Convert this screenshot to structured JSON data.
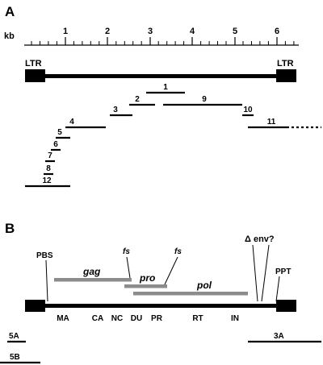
{
  "panel_a": {
    "panel_label": "A",
    "scale": {
      "unit_label": "kb",
      "ticks": [
        "1",
        "2",
        "3",
        "4",
        "5",
        "6"
      ]
    },
    "ltr_left": "LTR",
    "ltr_right": "LTR",
    "clones": [
      {
        "label": "1"
      },
      {
        "label": "2"
      },
      {
        "label": "3"
      },
      {
        "label": "9"
      },
      {
        "label": "10"
      },
      {
        "label": "4"
      },
      {
        "label": "11"
      },
      {
        "label": "5"
      },
      {
        "label": "6"
      },
      {
        "label": "7"
      },
      {
        "label": "8"
      },
      {
        "label": "12"
      }
    ]
  },
  "panel_b": {
    "panel_label": "B",
    "pbs": "PBS",
    "ppt": "PPT",
    "env": "Δ env?",
    "genes": {
      "gag": "gag",
      "pro": "pro",
      "pol": "pol",
      "fs1": "fs",
      "fs2": "fs"
    },
    "domains": [
      "MA",
      "CA",
      "NC",
      "DU",
      "PR",
      "RT",
      "IN"
    ],
    "probes": {
      "p5a": "5A",
      "p5b": "5B",
      "p3a": "3A"
    }
  },
  "colors": {
    "line": "#000000",
    "gene_bar": "#8c8c8c"
  }
}
